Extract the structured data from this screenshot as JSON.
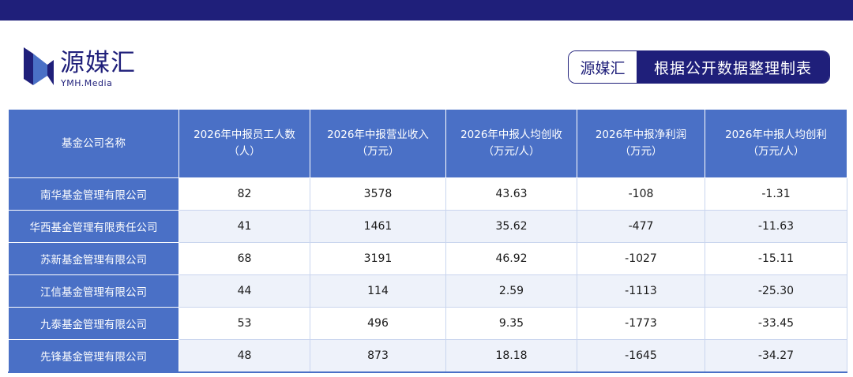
{
  "logo": {
    "name": "源媒汇",
    "sub": "YMH.Media"
  },
  "source_badge": {
    "brand": "源媒汇",
    "text": "根据公开数据整理制表"
  },
  "table": {
    "headers": [
      "基金公司名称",
      "2026年中报员工人数\n（人）",
      "2026年中报营业收入\n（万元）",
      "2026年中报人均创收\n（万元/人）",
      "2026年中报净利润\n（万元）",
      "2026年中报人均创利\n（万元/人）"
    ],
    "rows": [
      [
        "南华基金管理有限公司",
        "82",
        "3578",
        "43.63",
        "-108",
        "-1.31"
      ],
      [
        "华西基金管理有限责任公司",
        "41",
        "1461",
        "35.62",
        "-477",
        "-11.63"
      ],
      [
        "苏新基金管理有限公司",
        "68",
        "3191",
        "46.92",
        "-1027",
        "-15.11"
      ],
      [
        "江信基金管理有限公司",
        "44",
        "114",
        "2.59",
        "-1113",
        "-25.30"
      ],
      [
        "九泰基金管理有限公司",
        "53",
        "496",
        "9.35",
        "-1773",
        "-33.45"
      ],
      [
        "先锋基金管理有限公司",
        "48",
        "873",
        "18.18",
        "-1645",
        "-34.27"
      ]
    ]
  }
}
